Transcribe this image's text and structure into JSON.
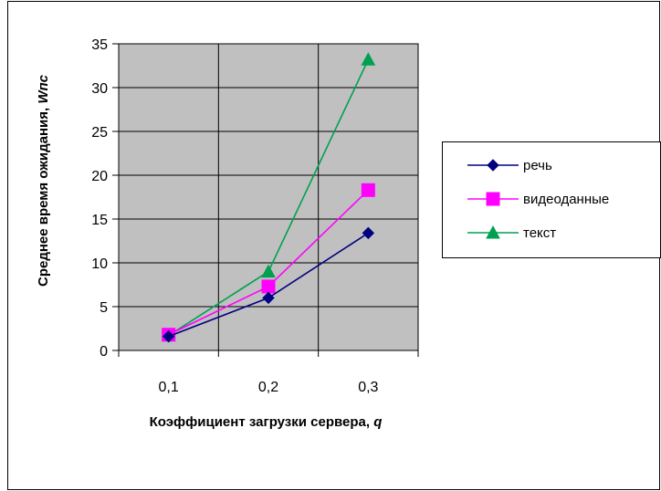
{
  "chart_data": {
    "type": "line",
    "title": "",
    "xlabel": "Коэффициент загрузки сервера, q",
    "xlabel_main": "Коэффициент загрузки сервера, ",
    "xlabel_var": "q",
    "ylabel": "Среднее время ожидания, Wпс",
    "ylabel_main": "Среднее время ожидания, ",
    "ylabel_var": "Wпс",
    "categories": [
      "0,1",
      "0,2",
      "0,3"
    ],
    "ylim": [
      0,
      35
    ],
    "yticks": [
      "0",
      "5",
      "10",
      "15",
      "20",
      "25",
      "30",
      "35"
    ],
    "grid": true,
    "legend_position": "right",
    "plot_background": "#c0c0c0",
    "series": [
      {
        "name": "речь",
        "values": [
          1.6,
          6.0,
          13.4
        ],
        "color": "#000080",
        "marker": "diamond"
      },
      {
        "name": "видеоданные",
        "values": [
          1.8,
          7.3,
          18.3
        ],
        "color": "#ff00ff",
        "marker": "square"
      },
      {
        "name": "текст",
        "values": [
          1.7,
          9.0,
          33.2
        ],
        "color": "#00a050",
        "marker": "triangle"
      }
    ]
  }
}
